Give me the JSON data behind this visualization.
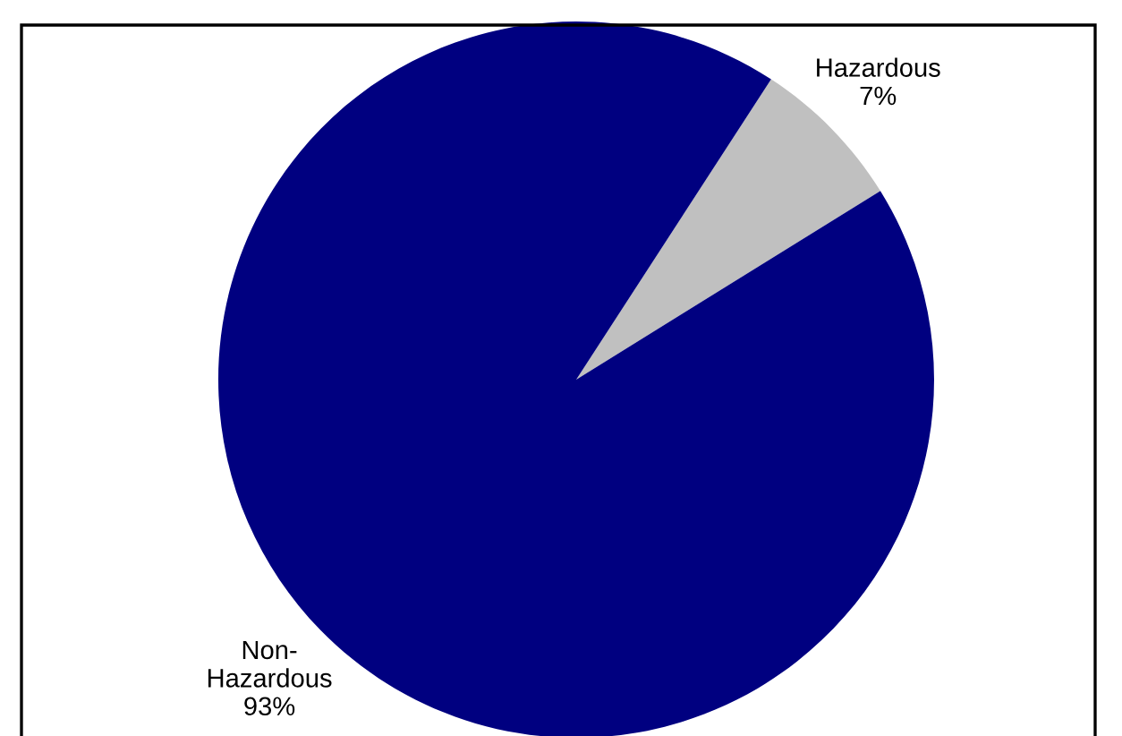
{
  "chart_data": {
    "type": "pie",
    "categories": [
      "Hazardous",
      "Non-Hazardous"
    ],
    "values": [
      7,
      93
    ],
    "colors": [
      "#c0c0c0",
      "#000080"
    ],
    "value_labels": [
      "7%",
      "93%"
    ]
  }
}
